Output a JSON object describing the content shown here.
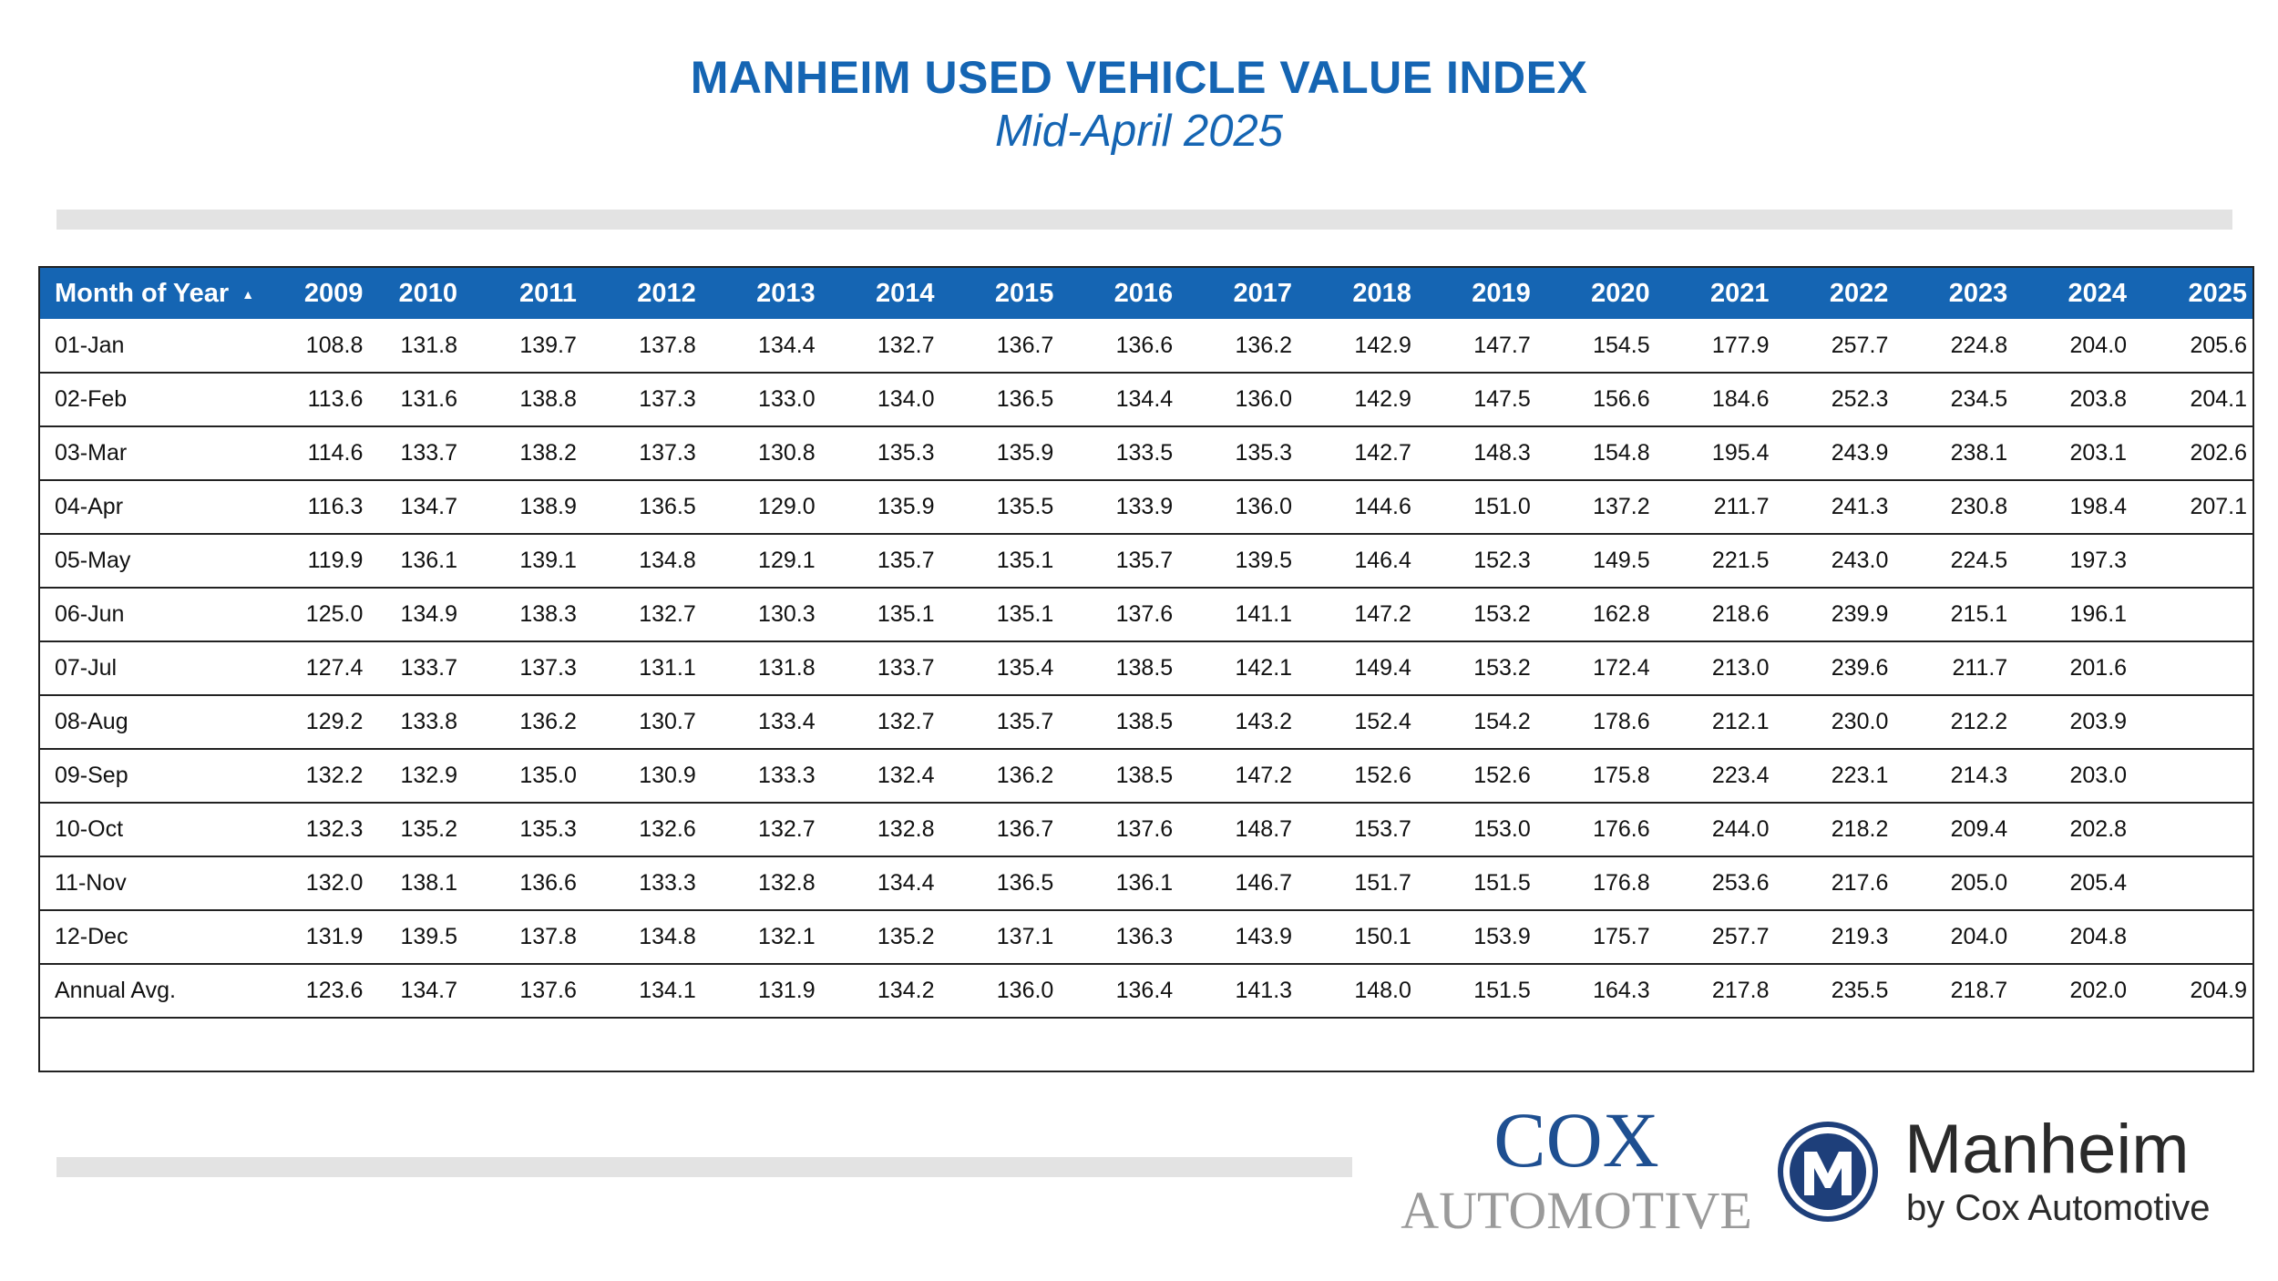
{
  "header": {
    "title": "MANHEIM USED VEHICLE VALUE INDEX",
    "subtitle": "Mid-April 2025"
  },
  "table": {
    "first_col_header": "Month of Year",
    "sort_icon": "sort-ascending-icon",
    "years": [
      "2009",
      "2010",
      "2011",
      "2012",
      "2013",
      "2014",
      "2015",
      "2016",
      "2017",
      "2018",
      "2019",
      "2020",
      "2021",
      "2022",
      "2023",
      "2024",
      "2025"
    ],
    "rows": [
      {
        "label": "01-Jan",
        "values": [
          "108.8",
          "131.8",
          "139.7",
          "137.8",
          "134.4",
          "132.7",
          "136.7",
          "136.6",
          "136.2",
          "142.9",
          "147.7",
          "154.5",
          "177.9",
          "257.7",
          "224.8",
          "204.0",
          "205.6"
        ]
      },
      {
        "label": "02-Feb",
        "values": [
          "113.6",
          "131.6",
          "138.8",
          "137.3",
          "133.0",
          "134.0",
          "136.5",
          "134.4",
          "136.0",
          "142.9",
          "147.5",
          "156.6",
          "184.6",
          "252.3",
          "234.5",
          "203.8",
          "204.1"
        ]
      },
      {
        "label": "03-Mar",
        "values": [
          "114.6",
          "133.7",
          "138.2",
          "137.3",
          "130.8",
          "135.3",
          "135.9",
          "133.5",
          "135.3",
          "142.7",
          "148.3",
          "154.8",
          "195.4",
          "243.9",
          "238.1",
          "203.1",
          "202.6"
        ]
      },
      {
        "label": "04-Apr",
        "values": [
          "116.3",
          "134.7",
          "138.9",
          "136.5",
          "129.0",
          "135.9",
          "135.5",
          "133.9",
          "136.0",
          "144.6",
          "151.0",
          "137.2",
          "211.7",
          "241.3",
          "230.8",
          "198.4",
          "207.1"
        ]
      },
      {
        "label": "05-May",
        "values": [
          "119.9",
          "136.1",
          "139.1",
          "134.8",
          "129.1",
          "135.7",
          "135.1",
          "135.7",
          "139.5",
          "146.4",
          "152.3",
          "149.5",
          "221.5",
          "243.0",
          "224.5",
          "197.3",
          ""
        ]
      },
      {
        "label": "06-Jun",
        "values": [
          "125.0",
          "134.9",
          "138.3",
          "132.7",
          "130.3",
          "135.1",
          "135.1",
          "137.6",
          "141.1",
          "147.2",
          "153.2",
          "162.8",
          "218.6",
          "239.9",
          "215.1",
          "196.1",
          ""
        ]
      },
      {
        "label": "07-Jul",
        "values": [
          "127.4",
          "133.7",
          "137.3",
          "131.1",
          "131.8",
          "133.7",
          "135.4",
          "138.5",
          "142.1",
          "149.4",
          "153.2",
          "172.4",
          "213.0",
          "239.6",
          "211.7",
          "201.6",
          ""
        ]
      },
      {
        "label": "08-Aug",
        "values": [
          "129.2",
          "133.8",
          "136.2",
          "130.7",
          "133.4",
          "132.7",
          "135.7",
          "138.5",
          "143.2",
          "152.4",
          "154.2",
          "178.6",
          "212.1",
          "230.0",
          "212.2",
          "203.9",
          ""
        ]
      },
      {
        "label": "09-Sep",
        "values": [
          "132.2",
          "132.9",
          "135.0",
          "130.9",
          "133.3",
          "132.4",
          "136.2",
          "138.5",
          "147.2",
          "152.6",
          "152.6",
          "175.8",
          "223.4",
          "223.1",
          "214.3",
          "203.0",
          ""
        ]
      },
      {
        "label": "10-Oct",
        "values": [
          "132.3",
          "135.2",
          "135.3",
          "132.6",
          "132.7",
          "132.8",
          "136.7",
          "137.6",
          "148.7",
          "153.7",
          "153.0",
          "176.6",
          "244.0",
          "218.2",
          "209.4",
          "202.8",
          ""
        ]
      },
      {
        "label": "11-Nov",
        "values": [
          "132.0",
          "138.1",
          "136.6",
          "133.3",
          "132.8",
          "134.4",
          "136.5",
          "136.1",
          "146.7",
          "151.7",
          "151.5",
          "176.8",
          "253.6",
          "217.6",
          "205.0",
          "205.4",
          ""
        ]
      },
      {
        "label": "12-Dec",
        "values": [
          "131.9",
          "139.5",
          "137.8",
          "134.8",
          "132.1",
          "135.2",
          "137.1",
          "136.3",
          "143.9",
          "150.1",
          "153.9",
          "175.7",
          "257.7",
          "219.3",
          "204.0",
          "204.8",
          ""
        ]
      },
      {
        "label": "Annual Avg.",
        "values": [
          "123.6",
          "134.7",
          "137.6",
          "134.1",
          "131.9",
          "134.2",
          "136.0",
          "136.4",
          "141.3",
          "148.0",
          "151.5",
          "164.3",
          "217.8",
          "235.5",
          "218.7",
          "202.0",
          "204.9"
        ]
      }
    ]
  },
  "logos": {
    "cox_line1": "COX",
    "cox_line2": "AUTOMOTIVE",
    "manheim_name": "Manheim",
    "manheim_sub": "by Cox Automotive",
    "manheim_icon": "manheim-m-logo-icon",
    "brand_blue": "#1565b3",
    "cox_blue": "#1e4f91",
    "gray": "#9a9a9a"
  }
}
